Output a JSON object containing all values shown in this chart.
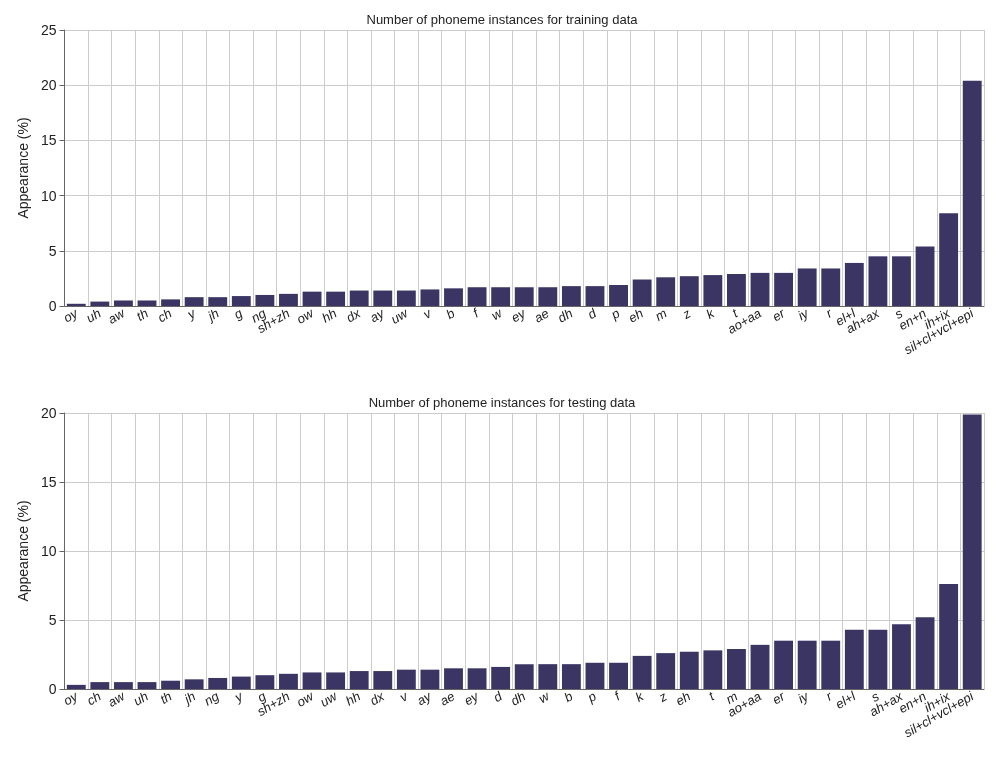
{
  "chart_data": [
    {
      "type": "bar",
      "title": "Number of phoneme instances for training data",
      "ylabel": "Appearance (%)",
      "categories": [
        "oy",
        "uh",
        "aw",
        "th",
        "ch",
        "y",
        "jh",
        "g",
        "ng",
        "sh+zh",
        "ow",
        "hh",
        "dx",
        "ay",
        "uw",
        "v",
        "b",
        "f",
        "w",
        "ey",
        "ae",
        "dh",
        "d",
        "p",
        "eh",
        "m",
        "z",
        "k",
        "t",
        "ao+aa",
        "er",
        "iy",
        "r",
        "el+l",
        "ah+ax",
        "s",
        "en+n",
        "ih+ix",
        "sil+cl+vcl+epi"
      ],
      "values": [
        0.2,
        0.4,
        0.5,
        0.5,
        0.6,
        0.8,
        0.8,
        0.9,
        1.0,
        1.1,
        1.3,
        1.3,
        1.4,
        1.4,
        1.4,
        1.5,
        1.6,
        1.7,
        1.7,
        1.7,
        1.7,
        1.8,
        1.8,
        1.9,
        2.4,
        2.6,
        2.7,
        2.8,
        2.9,
        3.0,
        3.0,
        3.4,
        3.4,
        3.9,
        4.5,
        4.5,
        5.4,
        8.4,
        20.4
      ],
      "color": "#3b3564",
      "ylim": [
        0,
        25
      ],
      "yticks": [
        0,
        5,
        10,
        15,
        20,
        25
      ],
      "grid": true
    },
    {
      "type": "bar",
      "title": "Number of phoneme instances for testing data",
      "ylabel": "Appearance (%)",
      "categories": [
        "oy",
        "ch",
        "aw",
        "uh",
        "th",
        "jh",
        "ng",
        "y",
        "g",
        "sh+zh",
        "ow",
        "uw",
        "hh",
        "dx",
        "v",
        "ay",
        "ae",
        "ey",
        "d",
        "dh",
        "w",
        "b",
        "p",
        "f",
        "k",
        "z",
        "eh",
        "t",
        "m",
        "ao+aa",
        "er",
        "iy",
        "r",
        "el+l",
        "s",
        "ah+ax",
        "en+n",
        "ih+ix",
        "sil+cl+vcl+epi"
      ],
      "values": [
        0.3,
        0.5,
        0.5,
        0.5,
        0.6,
        0.7,
        0.8,
        0.9,
        1.0,
        1.1,
        1.2,
        1.2,
        1.3,
        1.3,
        1.4,
        1.4,
        1.5,
        1.5,
        1.6,
        1.8,
        1.8,
        1.8,
        1.9,
        1.9,
        2.4,
        2.6,
        2.7,
        2.8,
        2.9,
        3.2,
        3.5,
        3.5,
        3.5,
        4.3,
        4.3,
        4.7,
        5.2,
        7.6,
        19.9
      ],
      "color": "#3b3564",
      "ylim": [
        0,
        20
      ],
      "yticks": [
        0,
        5,
        10,
        15,
        20
      ],
      "grid": true
    }
  ]
}
